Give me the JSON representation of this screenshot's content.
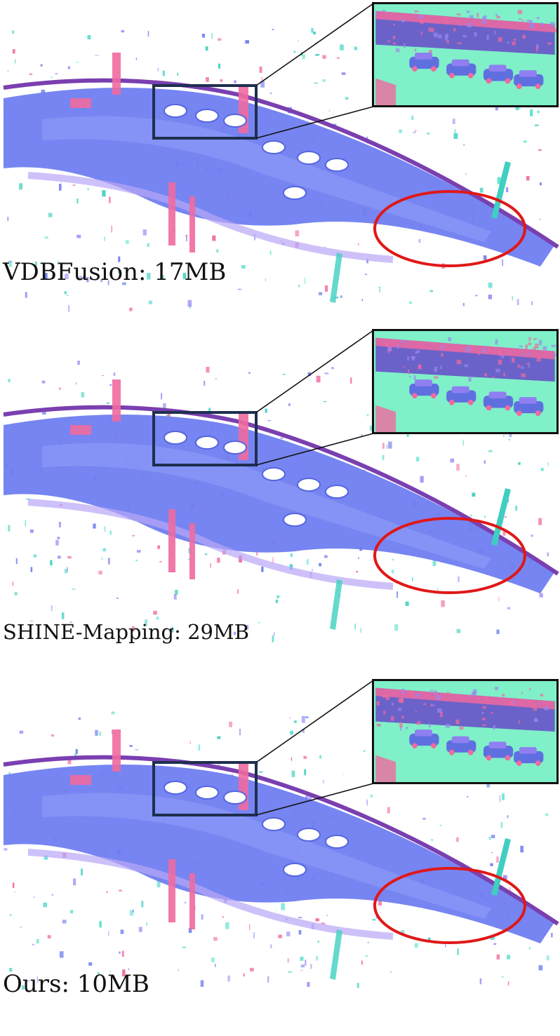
{
  "panels": [
    {
      "method": "VDBFusion",
      "size": "17MB",
      "label": "VDBFusion: 17MB"
    },
    {
      "method": "SHINE-Mapping",
      "size": "29MB",
      "label": "SHINE-Mapping: 29MB"
    },
    {
      "method": "Ours",
      "size": "10MB",
      "label": "Ours: 10MB"
    }
  ],
  "colors": {
    "road": "#6f7ef0",
    "road_edge": "#7a3fb0",
    "building": "#f06aa0",
    "vegetation": "#3fcfc0",
    "grass": "#7ff0c8",
    "focus_box": "#1f2f4f",
    "highlight_ellipse": "#e01818"
  }
}
